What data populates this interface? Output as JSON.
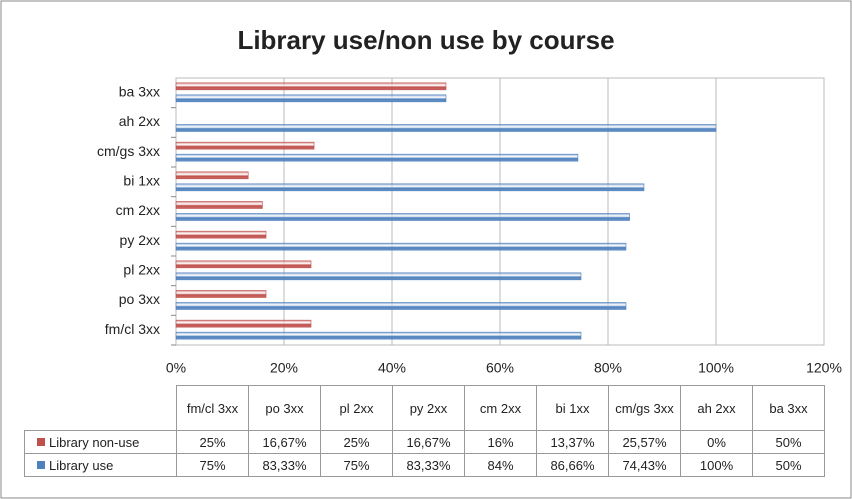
{
  "chart_data": {
    "type": "hbar",
    "title": "Library use/non use by course",
    "categories": [
      "fm/cl 3xx",
      "po 3xx",
      "pl 2xx",
      "py 2xx",
      "cm 2xx",
      "bi 1xx",
      "cm/gs 3xx",
      "ah 2xx",
      "ba 3xx"
    ],
    "series": [
      {
        "name": "Library non-use",
        "color": "#c0504d",
        "values": [
          25,
          16.67,
          25,
          16.67,
          16,
          13.37,
          25.57,
          0,
          50
        ],
        "value_labels": [
          "25%",
          "16,67%",
          "25%",
          "16,67%",
          "16%",
          "13,37%",
          "25,57%",
          "0%",
          "50%"
        ]
      },
      {
        "name": "Library use",
        "color": "#4f81bd",
        "values": [
          75,
          83.33,
          75,
          83.33,
          84,
          86.66,
          74.43,
          100,
          50
        ],
        "value_labels": [
          "75%",
          "83,33%",
          "75%",
          "83,33%",
          "84%",
          "86,66%",
          "74,43%",
          "100%",
          "50%"
        ]
      }
    ],
    "xlim": [
      0,
      120
    ],
    "xticks": [
      {
        "value": 0,
        "label": "0%"
      },
      {
        "value": 20,
        "label": "20%"
      },
      {
        "value": 40,
        "label": "40%"
      },
      {
        "value": 60,
        "label": "60%"
      },
      {
        "value": 80,
        "label": "80%"
      },
      {
        "value": 100,
        "label": "100%"
      },
      {
        "value": 120,
        "label": "120%"
      }
    ],
    "grid": true
  }
}
